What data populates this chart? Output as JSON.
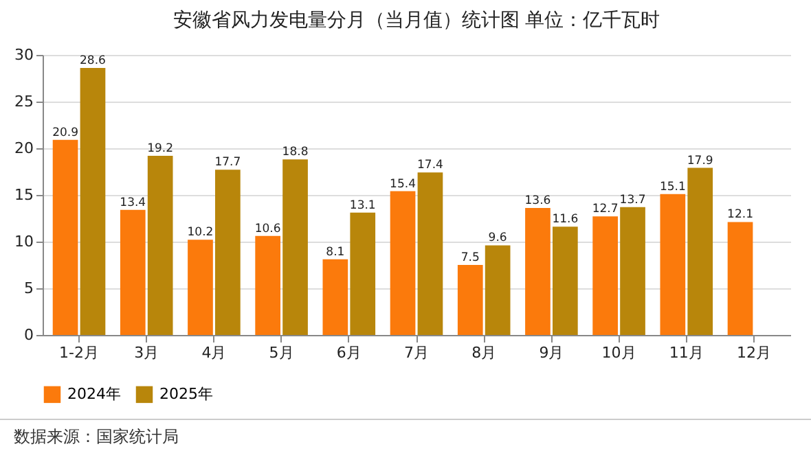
{
  "chart_data": {
    "type": "bar",
    "title": "安徽省风力发电量分月（当月值）统计图 单位：亿千瓦时",
    "categories": [
      "1-2月",
      "3月",
      "4月",
      "5月",
      "6月",
      "7月",
      "8月",
      "9月",
      "10月",
      "11月",
      "12月"
    ],
    "series": [
      {
        "name": "2024年",
        "color": "#fb7a0c",
        "values": [
          20.9,
          13.4,
          10.2,
          10.6,
          8.1,
          15.4,
          7.5,
          13.6,
          12.7,
          15.1,
          12.1
        ]
      },
      {
        "name": "2025年",
        "color": "#b8860b",
        "values": [
          28.6,
          19.2,
          17.7,
          18.8,
          13.1,
          17.4,
          9.6,
          11.6,
          13.7,
          17.9,
          null
        ]
      }
    ],
    "ylim": [
      0,
      30
    ],
    "yticks": [
      0,
      5,
      10,
      15,
      20,
      25,
      30
    ],
    "grid": "y",
    "legend": "bottom",
    "data_labels": true,
    "annotations": [
      "数据来源：国家统计局"
    ]
  }
}
